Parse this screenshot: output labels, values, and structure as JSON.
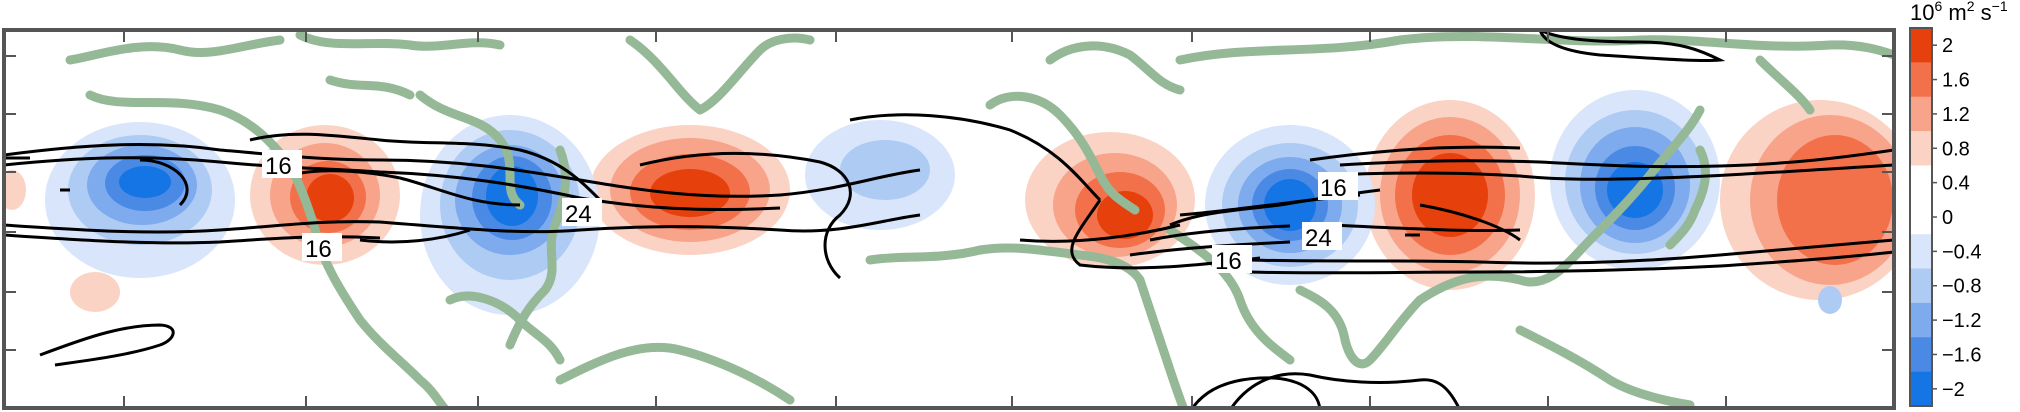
{
  "map": {
    "contour_labels": [
      "16",
      "24",
      "16",
      "16",
      "24",
      "16"
    ]
  },
  "colorbar": {
    "units_base": "10",
    "units_exp": "6",
    "units_mid": " m",
    "units_exp2": "2",
    "units_s": " s",
    "units_exp3": "−1",
    "levels": [
      "2",
      "1.6",
      "1.2",
      "0.8",
      "0.4",
      "0",
      "−0.4",
      "−0.8",
      "−1.2",
      "−1.6",
      "−2"
    ],
    "colors": [
      "#e6400d",
      "#f2714a",
      "#f7a48a",
      "#fbd3c5",
      "#ffffff",
      "#ffffff",
      "#d8e5fa",
      "#aecbf3",
      "#7eaaee",
      "#4b8ae4",
      "#1575e4"
    ]
  },
  "colors": {
    "coast": "#95b897",
    "positive_strong": "#e6400d",
    "negative_strong": "#1575e4",
    "contour": "#000000"
  }
}
